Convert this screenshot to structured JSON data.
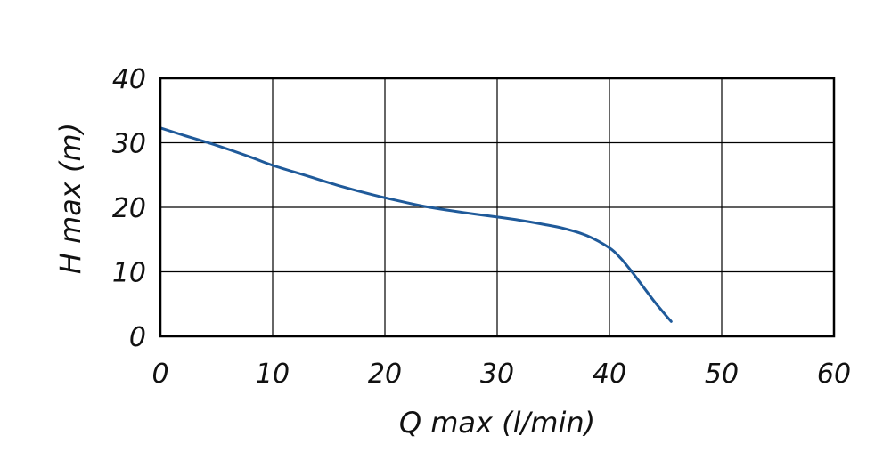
{
  "chart_data": {
    "type": "line",
    "title": "",
    "xlabel": "Q max (l/min)",
    "ylabel": "H max (m)",
    "xlim": [
      0,
      60
    ],
    "ylim": [
      0,
      40
    ],
    "xticks": [
      0,
      10,
      20,
      30,
      40,
      50,
      60
    ],
    "yticks": [
      0,
      10,
      20,
      30,
      40
    ],
    "grid": true,
    "series": [
      {
        "color": "#1f5a9a",
        "x": [
          0,
          2,
          5,
          8,
          10,
          13,
          16,
          19,
          22,
          24,
          27,
          30,
          32,
          34,
          36,
          38,
          40,
          41,
          42,
          43,
          44,
          45,
          45.5
        ],
        "y": [
          32.3,
          31.2,
          29.6,
          27.8,
          26.5,
          24.9,
          23.3,
          21.9,
          20.7,
          20.0,
          19.2,
          18.5,
          18.0,
          17.4,
          16.7,
          15.6,
          13.7,
          12.1,
          10.0,
          7.7,
          5.4,
          3.3,
          2.3
        ]
      }
    ]
  }
}
